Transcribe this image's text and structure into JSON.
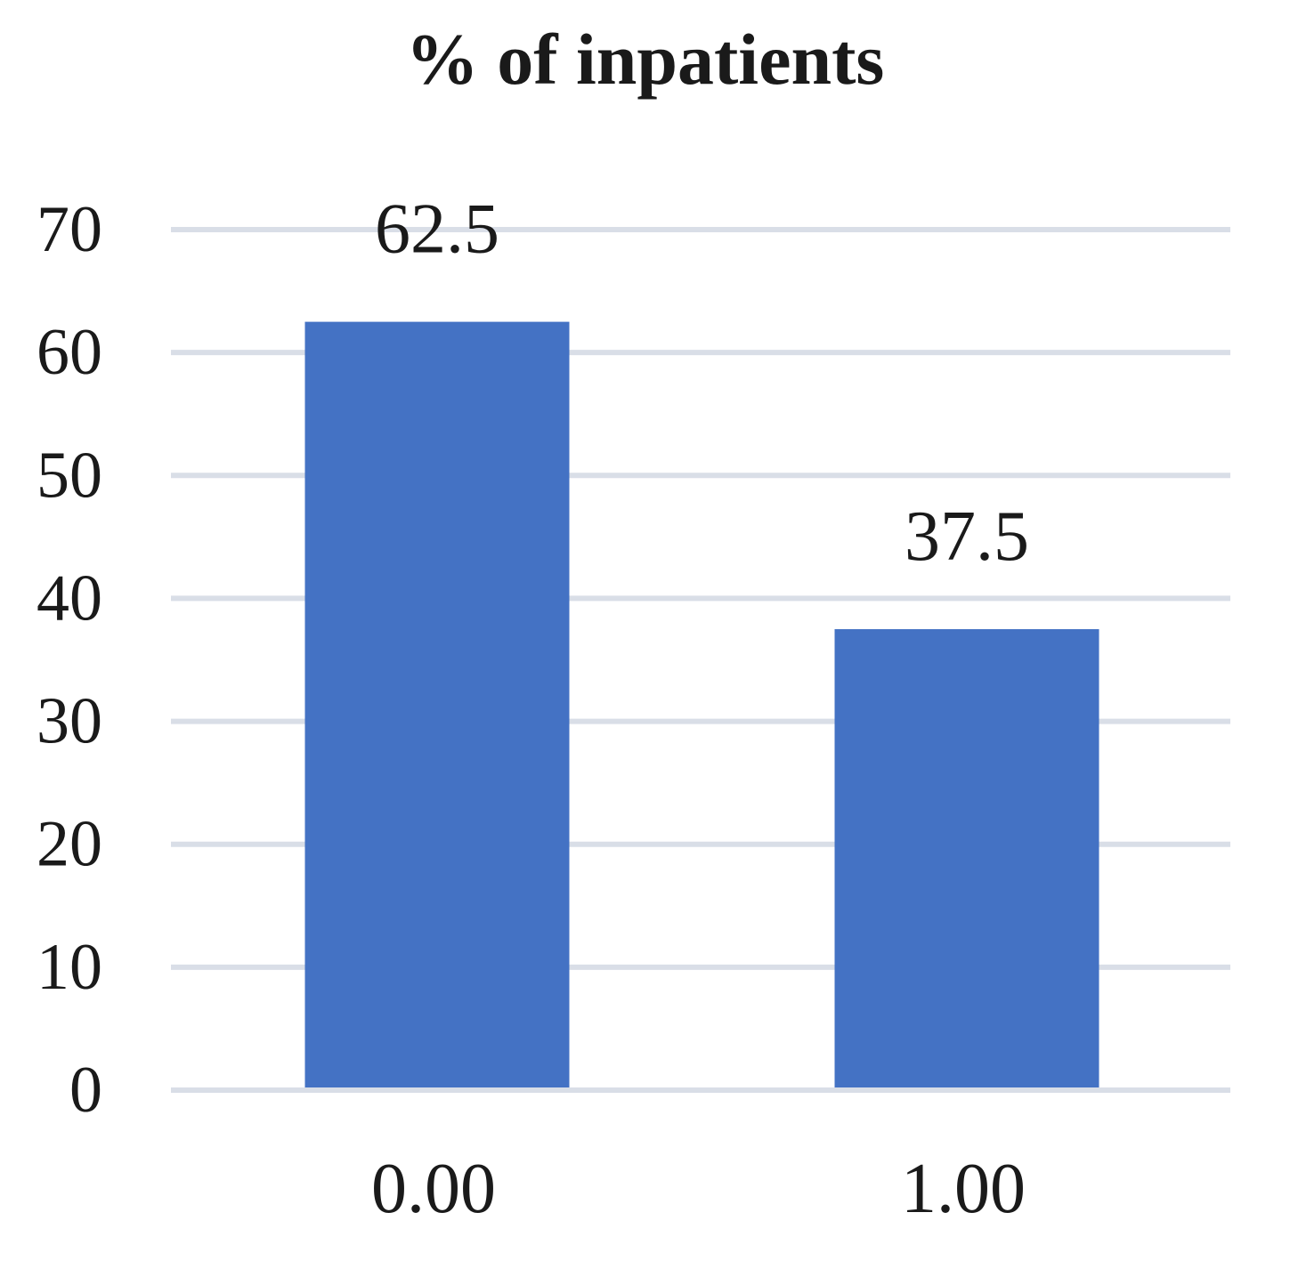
{
  "chart_data": {
    "type": "bar",
    "title": "% of inpatients",
    "categories": [
      "0.00",
      "1.00"
    ],
    "values": [
      62.5,
      37.5
    ],
    "data_labels": [
      "62.5",
      "37.5"
    ],
    "yticks": [
      "0",
      "10",
      "20",
      "30",
      "40",
      "50",
      "60",
      "70"
    ],
    "ylim": [
      0,
      70
    ],
    "xlabel": "",
    "ylabel": "",
    "grid": true,
    "legend": "none",
    "colors": {
      "bar": "#4472C4",
      "grid": "#D9DEE7",
      "text": "#1a1a1a"
    }
  }
}
